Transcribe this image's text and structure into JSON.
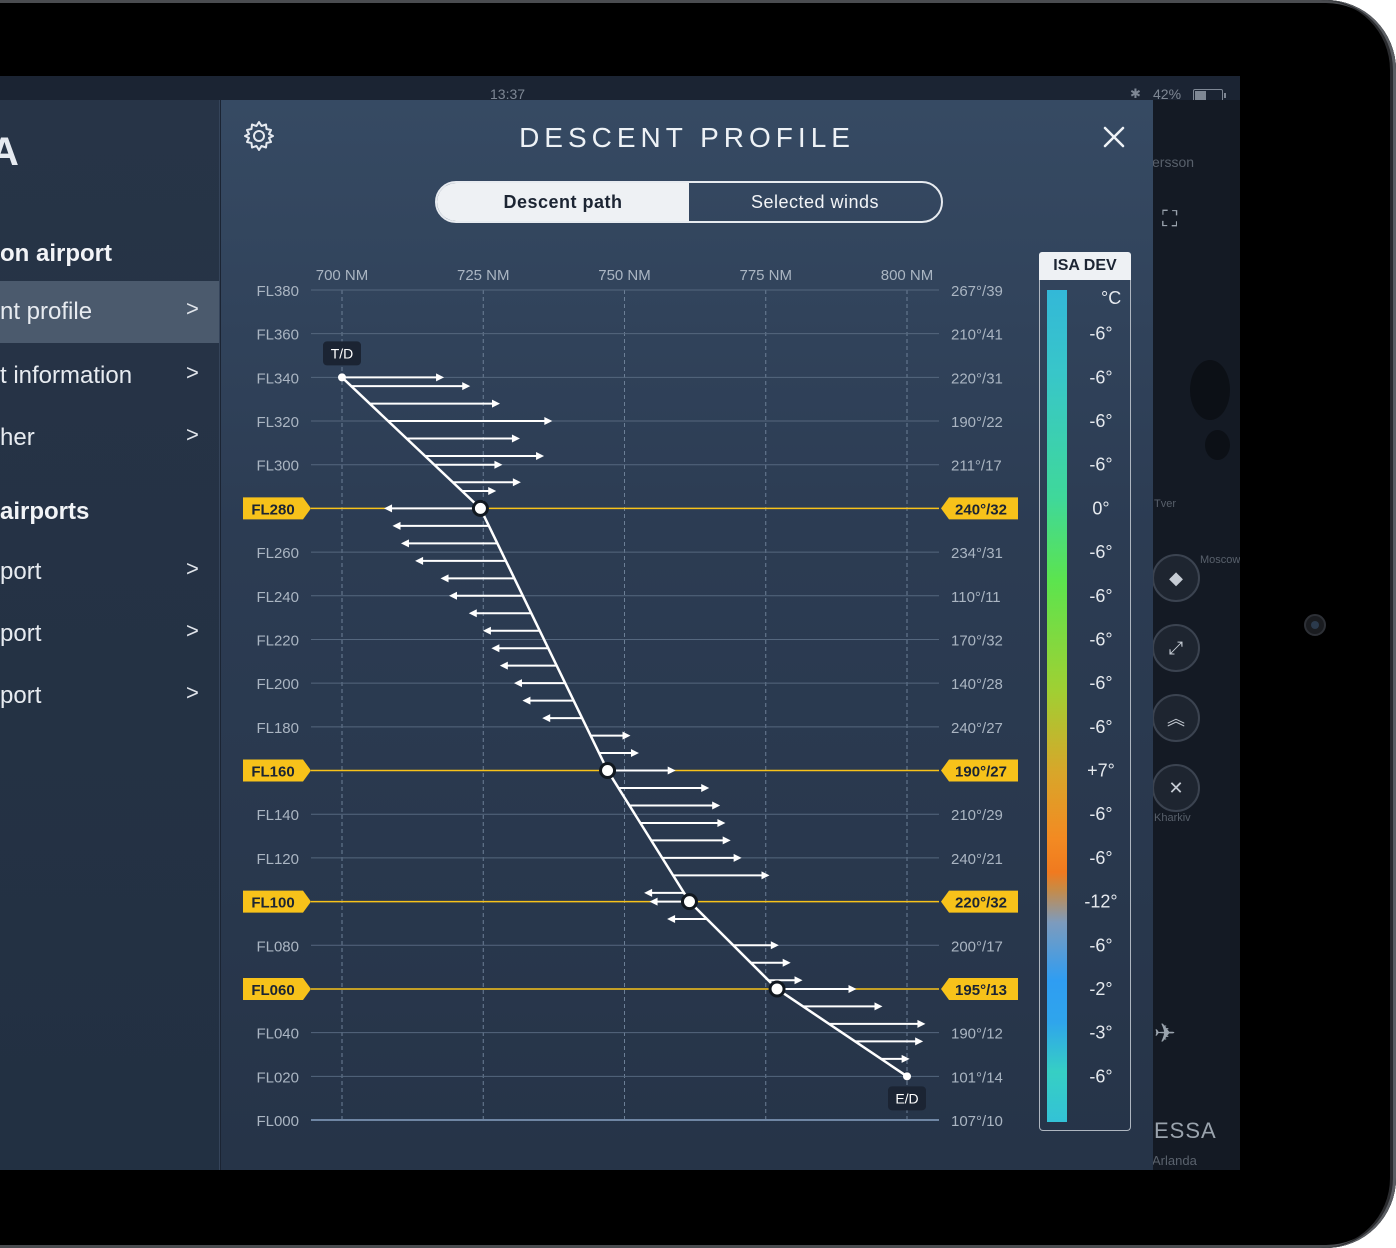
{
  "status_bar": {
    "time": "13:37",
    "battery": "42%"
  },
  "sidebar": {
    "logo": "A",
    "sections": [
      {
        "label": "on airport"
      },
      {
        "label": "airports"
      }
    ],
    "items": [
      {
        "label": "nt profile"
      },
      {
        "label": "t information"
      },
      {
        "label": "her"
      },
      {
        "label": "port"
      },
      {
        "label": "port"
      },
      {
        "label": "port"
      }
    ]
  },
  "modal": {
    "title": "DESCENT PROFILE",
    "tabs": [
      {
        "label": "Descent path",
        "selected": true
      },
      {
        "label": "Selected winds",
        "selected": false
      }
    ]
  },
  "map": {
    "labels": [
      "ersson",
      "Tver",
      "Moscow",
      "Kharkiv"
    ],
    "airport_code": "ESSA",
    "airport_name": "Arlanda"
  },
  "colors": {
    "highlight": "#f7c21a",
    "path": "#ffffff",
    "background": "#2c3c53"
  },
  "chart_data": {
    "type": "line",
    "title": "DESCENT PROFILE",
    "x_ticks": [
      "700 NM",
      "725 NM",
      "750 NM",
      "775 NM",
      "800 NM"
    ],
    "xlim": [
      695,
      805
    ],
    "ylim": [
      0,
      380
    ],
    "levels": [
      {
        "fl": "FL380",
        "alt": 380,
        "wind": "267°/39",
        "isa": ""
      },
      {
        "fl": "FL360",
        "alt": 360,
        "wind": "210°/41",
        "isa": "-6°"
      },
      {
        "fl": "FL340",
        "alt": 340,
        "wind": "220°/31",
        "isa": "-6°"
      },
      {
        "fl": "FL320",
        "alt": 320,
        "wind": "190°/22",
        "isa": "-6°"
      },
      {
        "fl": "FL300",
        "alt": 300,
        "wind": "211°/17",
        "isa": "-6°"
      },
      {
        "fl": "FL280",
        "alt": 280,
        "wind": "240°/32",
        "isa": "0°",
        "highlight": true
      },
      {
        "fl": "FL260",
        "alt": 260,
        "wind": "234°/31",
        "isa": "-6°"
      },
      {
        "fl": "FL240",
        "alt": 240,
        "wind": "110°/11",
        "isa": "-6°"
      },
      {
        "fl": "FL220",
        "alt": 220,
        "wind": "170°/32",
        "isa": "-6°"
      },
      {
        "fl": "FL200",
        "alt": 200,
        "wind": "140°/28",
        "isa": "-6°"
      },
      {
        "fl": "FL180",
        "alt": 180,
        "wind": "240°/27",
        "isa": "-6°"
      },
      {
        "fl": "FL160",
        "alt": 160,
        "wind": "190°/27",
        "isa": "+7°",
        "highlight": true
      },
      {
        "fl": "FL140",
        "alt": 140,
        "wind": "210°/29",
        "isa": "-6°"
      },
      {
        "fl": "FL120",
        "alt": 120,
        "wind": "240°/21",
        "isa": "-6°"
      },
      {
        "fl": "FL100",
        "alt": 100,
        "wind": "220°/32",
        "isa": "-12°",
        "highlight": true
      },
      {
        "fl": "FL080",
        "alt": 80,
        "wind": "200°/17",
        "isa": "-6°"
      },
      {
        "fl": "FL060",
        "alt": 60,
        "wind": "195°/13",
        "isa": "-2°",
        "highlight": true
      },
      {
        "fl": "FL040",
        "alt": 40,
        "wind": "190°/12",
        "isa": "-3°"
      },
      {
        "fl": "FL020",
        "alt": 20,
        "wind": "101°/14",
        "isa": "-6°"
      },
      {
        "fl": "FL000",
        "alt": 0,
        "wind": "107°/10",
        "isa": ""
      }
    ],
    "path": [
      {
        "x": 700,
        "y": 340
      },
      {
        "x": 724.5,
        "y": 280
      },
      {
        "x": 747,
        "y": 160
      },
      {
        "x": 761.5,
        "y": 100
      },
      {
        "x": 777,
        "y": 60
      },
      {
        "x": 800,
        "y": 20
      }
    ],
    "waypoints": [
      {
        "x": 724.5,
        "y": 280
      },
      {
        "x": 747,
        "y": 160
      },
      {
        "x": 761.5,
        "y": 100
      },
      {
        "x": 777,
        "y": 60
      }
    ],
    "start_label": "T/D",
    "end_label": "E/D",
    "isa_title": "ISA DEV",
    "isa_unit": "°C",
    "wind_arrows": [
      {
        "alt": 340,
        "dir": 1,
        "len": 17
      },
      {
        "alt": 336,
        "dir": 1,
        "len": 20
      },
      {
        "alt": 328,
        "dir": 1,
        "len": 22
      },
      {
        "alt": 320,
        "dir": 1,
        "len": 28
      },
      {
        "alt": 312,
        "dir": 1,
        "len": 19
      },
      {
        "alt": 304,
        "dir": 1,
        "len": 20
      },
      {
        "alt": 300,
        "dir": 1,
        "len": 11
      },
      {
        "alt": 292,
        "dir": 1,
        "len": 11
      },
      {
        "alt": 288,
        "dir": 1,
        "len": 5
      },
      {
        "alt": 280,
        "dir": -1,
        "len": 16
      },
      {
        "alt": 272,
        "dir": -1,
        "len": 16
      },
      {
        "alt": 264,
        "dir": -1,
        "len": 16
      },
      {
        "alt": 256,
        "dir": -1,
        "len": 15
      },
      {
        "alt": 248,
        "dir": -1,
        "len": 12
      },
      {
        "alt": 240,
        "dir": -1,
        "len": 12
      },
      {
        "alt": 232,
        "dir": -1,
        "len": 10
      },
      {
        "alt": 224,
        "dir": -1,
        "len": 9
      },
      {
        "alt": 216,
        "dir": -1,
        "len": 9
      },
      {
        "alt": 208,
        "dir": -1,
        "len": 9
      },
      {
        "alt": 200,
        "dir": -1,
        "len": 8
      },
      {
        "alt": 192,
        "dir": -1,
        "len": 8
      },
      {
        "alt": 184,
        "dir": -1,
        "len": 6
      },
      {
        "alt": 176,
        "dir": 1,
        "len": 6
      },
      {
        "alt": 168,
        "dir": 1,
        "len": 6
      },
      {
        "alt": 160,
        "dir": 1,
        "len": 11
      },
      {
        "alt": 152,
        "dir": 1,
        "len": 15
      },
      {
        "alt": 144,
        "dir": 1,
        "len": 15
      },
      {
        "alt": 136,
        "dir": 1,
        "len": 14
      },
      {
        "alt": 128,
        "dir": 1,
        "len": 13
      },
      {
        "alt": 120,
        "dir": 1,
        "len": 13
      },
      {
        "alt": 112,
        "dir": 1,
        "len": 16
      },
      {
        "alt": 104,
        "dir": -1,
        "len": 6
      },
      {
        "alt": 100,
        "dir": -1,
        "len": 6
      },
      {
        "alt": 92,
        "dir": -1,
        "len": 6
      },
      {
        "alt": 80,
        "dir": 1,
        "len": 7
      },
      {
        "alt": 72,
        "dir": 1,
        "len": 6
      },
      {
        "alt": 64,
        "dir": 1,
        "len": 5
      },
      {
        "alt": 60,
        "dir": 1,
        "len": 13
      },
      {
        "alt": 52,
        "dir": 1,
        "len": 13
      },
      {
        "alt": 44,
        "dir": 1,
        "len": 16
      },
      {
        "alt": 36,
        "dir": 1,
        "len": 11
      },
      {
        "alt": 28,
        "dir": 1,
        "len": 4
      }
    ]
  }
}
